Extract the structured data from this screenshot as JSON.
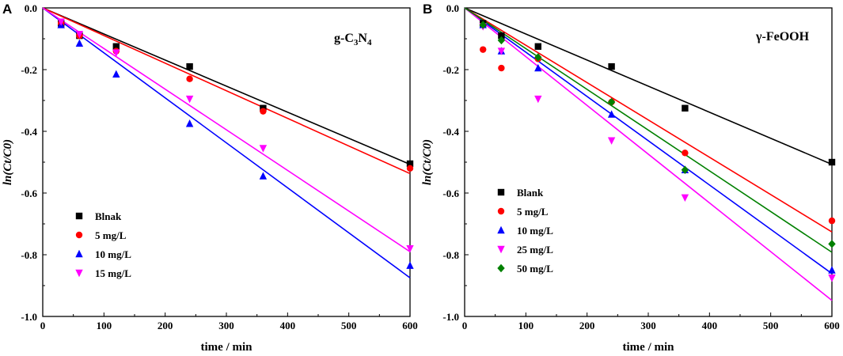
{
  "chart_data": [
    {
      "type": "scatter",
      "panel_label": "A",
      "title": "g-C3N4",
      "title_parts": {
        "prefix": "g-C",
        "sub1": "3",
        "mid": "N",
        "sub2": "4"
      },
      "xlabel": "time / min",
      "ylabel": "ln(Ct/C0)",
      "xlim": [
        0,
        600
      ],
      "ylim": [
        -1.0,
        0.0
      ],
      "xticks": [
        "0",
        "100",
        "200",
        "300",
        "400",
        "500",
        "600"
      ],
      "yticks": [
        "0.0",
        "-0.2",
        "-0.4",
        "-0.6",
        "-0.8",
        "-1.0"
      ],
      "legend_position": "bottom-left",
      "series": [
        {
          "name": "Blnak",
          "color": "#000000",
          "marker": "square",
          "x": [
            0,
            30,
            60,
            120,
            240,
            360,
            600
          ],
          "y": [
            0,
            -0.05,
            -0.09,
            -0.125,
            -0.19,
            -0.325,
            -0.505
          ],
          "fit_slope": -0.000845
        },
        {
          "name": "5 mg/L",
          "color": "#ff0000",
          "marker": "circle",
          "x": [
            0,
            30,
            60,
            120,
            240,
            360,
            600
          ],
          "y": [
            0,
            -0.05,
            -0.09,
            -0.14,
            -0.23,
            -0.335,
            -0.52
          ],
          "fit_slope": -0.000895
        },
        {
          "name": "10 mg/L",
          "color": "#0000ff",
          "marker": "triangle-up",
          "x": [
            0,
            30,
            60,
            120,
            240,
            360,
            600
          ],
          "y": [
            0,
            -0.055,
            -0.115,
            -0.215,
            -0.375,
            -0.545,
            -0.835
          ],
          "fit_slope": -0.001458
        },
        {
          "name": "15 mg/L",
          "color": "#ff00ff",
          "marker": "triangle-down",
          "x": [
            0,
            30,
            60,
            120,
            240,
            360,
            600
          ],
          "y": [
            0,
            -0.045,
            -0.085,
            -0.145,
            -0.295,
            -0.455,
            -0.78
          ],
          "fit_slope": -0.001317
        }
      ]
    },
    {
      "type": "scatter",
      "panel_label": "B",
      "title": "γ-FeOOH",
      "xlabel": "time / min",
      "ylabel": "ln(Ct/C0)",
      "xlim": [
        0,
        600
      ],
      "ylim": [
        -1.0,
        0.0
      ],
      "xticks": [
        "0",
        "100",
        "200",
        "300",
        "400",
        "500",
        "600"
      ],
      "yticks": [
        "0.0",
        "-0.2",
        "-0.4",
        "-0.6",
        "-0.8",
        "-1.0"
      ],
      "legend_position": "bottom-left",
      "series": [
        {
          "name": "Blank",
          "color": "#000000",
          "marker": "square",
          "x": [
            0,
            30,
            60,
            120,
            240,
            360,
            600
          ],
          "y": [
            0,
            -0.05,
            -0.09,
            -0.125,
            -0.19,
            -0.325,
            -0.5
          ],
          "fit_slope": -0.000845
        },
        {
          "name": "5 mg/L",
          "color": "#ff0000",
          "marker": "circle",
          "x": [
            0,
            30,
            60,
            120,
            240,
            360,
            600
          ],
          "y": [
            0,
            -0.135,
            -0.195,
            -0.165,
            -0.305,
            -0.47,
            -0.69
          ],
          "fit_slope": -0.00121
        },
        {
          "name": "10 mg/L",
          "color": "#0000ff",
          "marker": "triangle-up",
          "x": [
            0,
            30,
            60,
            120,
            240,
            360,
            600
          ],
          "y": [
            0,
            -0.055,
            -0.14,
            -0.195,
            -0.345,
            -0.525,
            -0.85
          ],
          "fit_slope": -0.001435
        },
        {
          "name": "25 mg/L",
          "color": "#ff00ff",
          "marker": "triangle-down",
          "x": [
            0,
            30,
            60,
            120,
            240,
            360,
            600
          ],
          "y": [
            0,
            -0.06,
            -0.14,
            -0.295,
            -0.43,
            -0.615,
            -0.875
          ],
          "fit_slope": -0.00158
        },
        {
          "name": "50 mg/L",
          "color": "#008000",
          "marker": "diamond",
          "x": [
            0,
            30,
            60,
            120,
            240,
            360,
            600
          ],
          "y": [
            0,
            -0.055,
            -0.105,
            -0.16,
            -0.305,
            -0.525,
            -0.765
          ],
          "fit_slope": -0.00132
        }
      ]
    }
  ]
}
